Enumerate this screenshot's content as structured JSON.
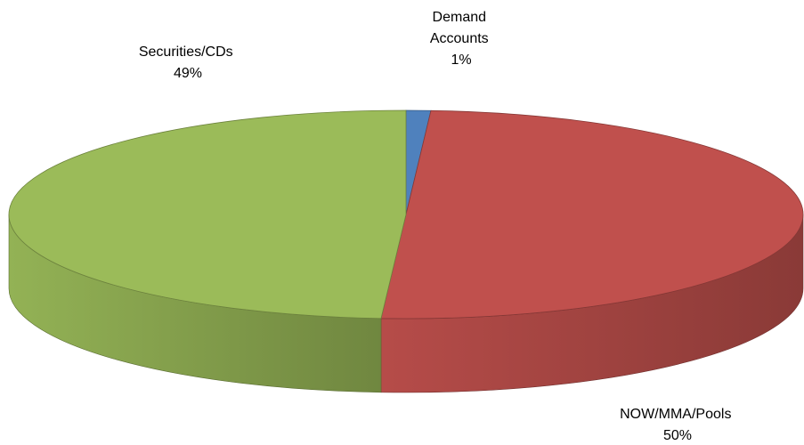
{
  "chart_data": {
    "type": "pie",
    "style": "3d",
    "slices": [
      {
        "label": "Demand Accounts",
        "display_name": [
          "Demand",
          "Accounts"
        ],
        "value": 1,
        "value_label": "1%",
        "color": "#4f81bd"
      },
      {
        "label": "NOW/MMA/Pools",
        "display_name": [
          "NOW/MMA/Pools"
        ],
        "value": 50,
        "value_label": "50%",
        "color": "#c0504d"
      },
      {
        "label": "Securities/CDs",
        "display_name": [
          "Securities/CDs"
        ],
        "value": 49,
        "value_label": "49%",
        "color": "#9bbb59"
      }
    ],
    "legend": "none"
  }
}
